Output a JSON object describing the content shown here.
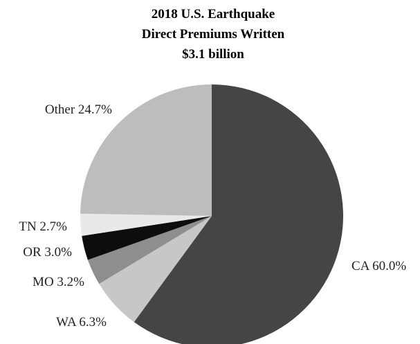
{
  "chart_data": {
    "type": "pie",
    "title_lines": [
      "2018 U.S. Earthquake",
      "Direct Premiums Written",
      "$3.1 billion"
    ],
    "slices": [
      {
        "label": "CA 60.0%",
        "category": "CA",
        "value": 60.0,
        "color": "#454545"
      },
      {
        "label": "WA 6.3%",
        "category": "WA",
        "value": 6.3,
        "color": "#c7c7c7"
      },
      {
        "label": "MO 3.2%",
        "category": "MO",
        "value": 3.2,
        "color": "#8e8e8e"
      },
      {
        "label": "OR 3.0%",
        "category": "OR",
        "value": 3.0,
        "color": "#0d0d0d"
      },
      {
        "label": "TN 2.7%",
        "category": "TN",
        "value": 2.7,
        "color": "#e9e9e9"
      },
      {
        "label": "Other 24.7%",
        "category": "Other",
        "value": 24.7,
        "color": "#bdbdbd"
      }
    ],
    "start_angle": "12 o'clock",
    "direction": "clockwise",
    "legend": "none"
  }
}
